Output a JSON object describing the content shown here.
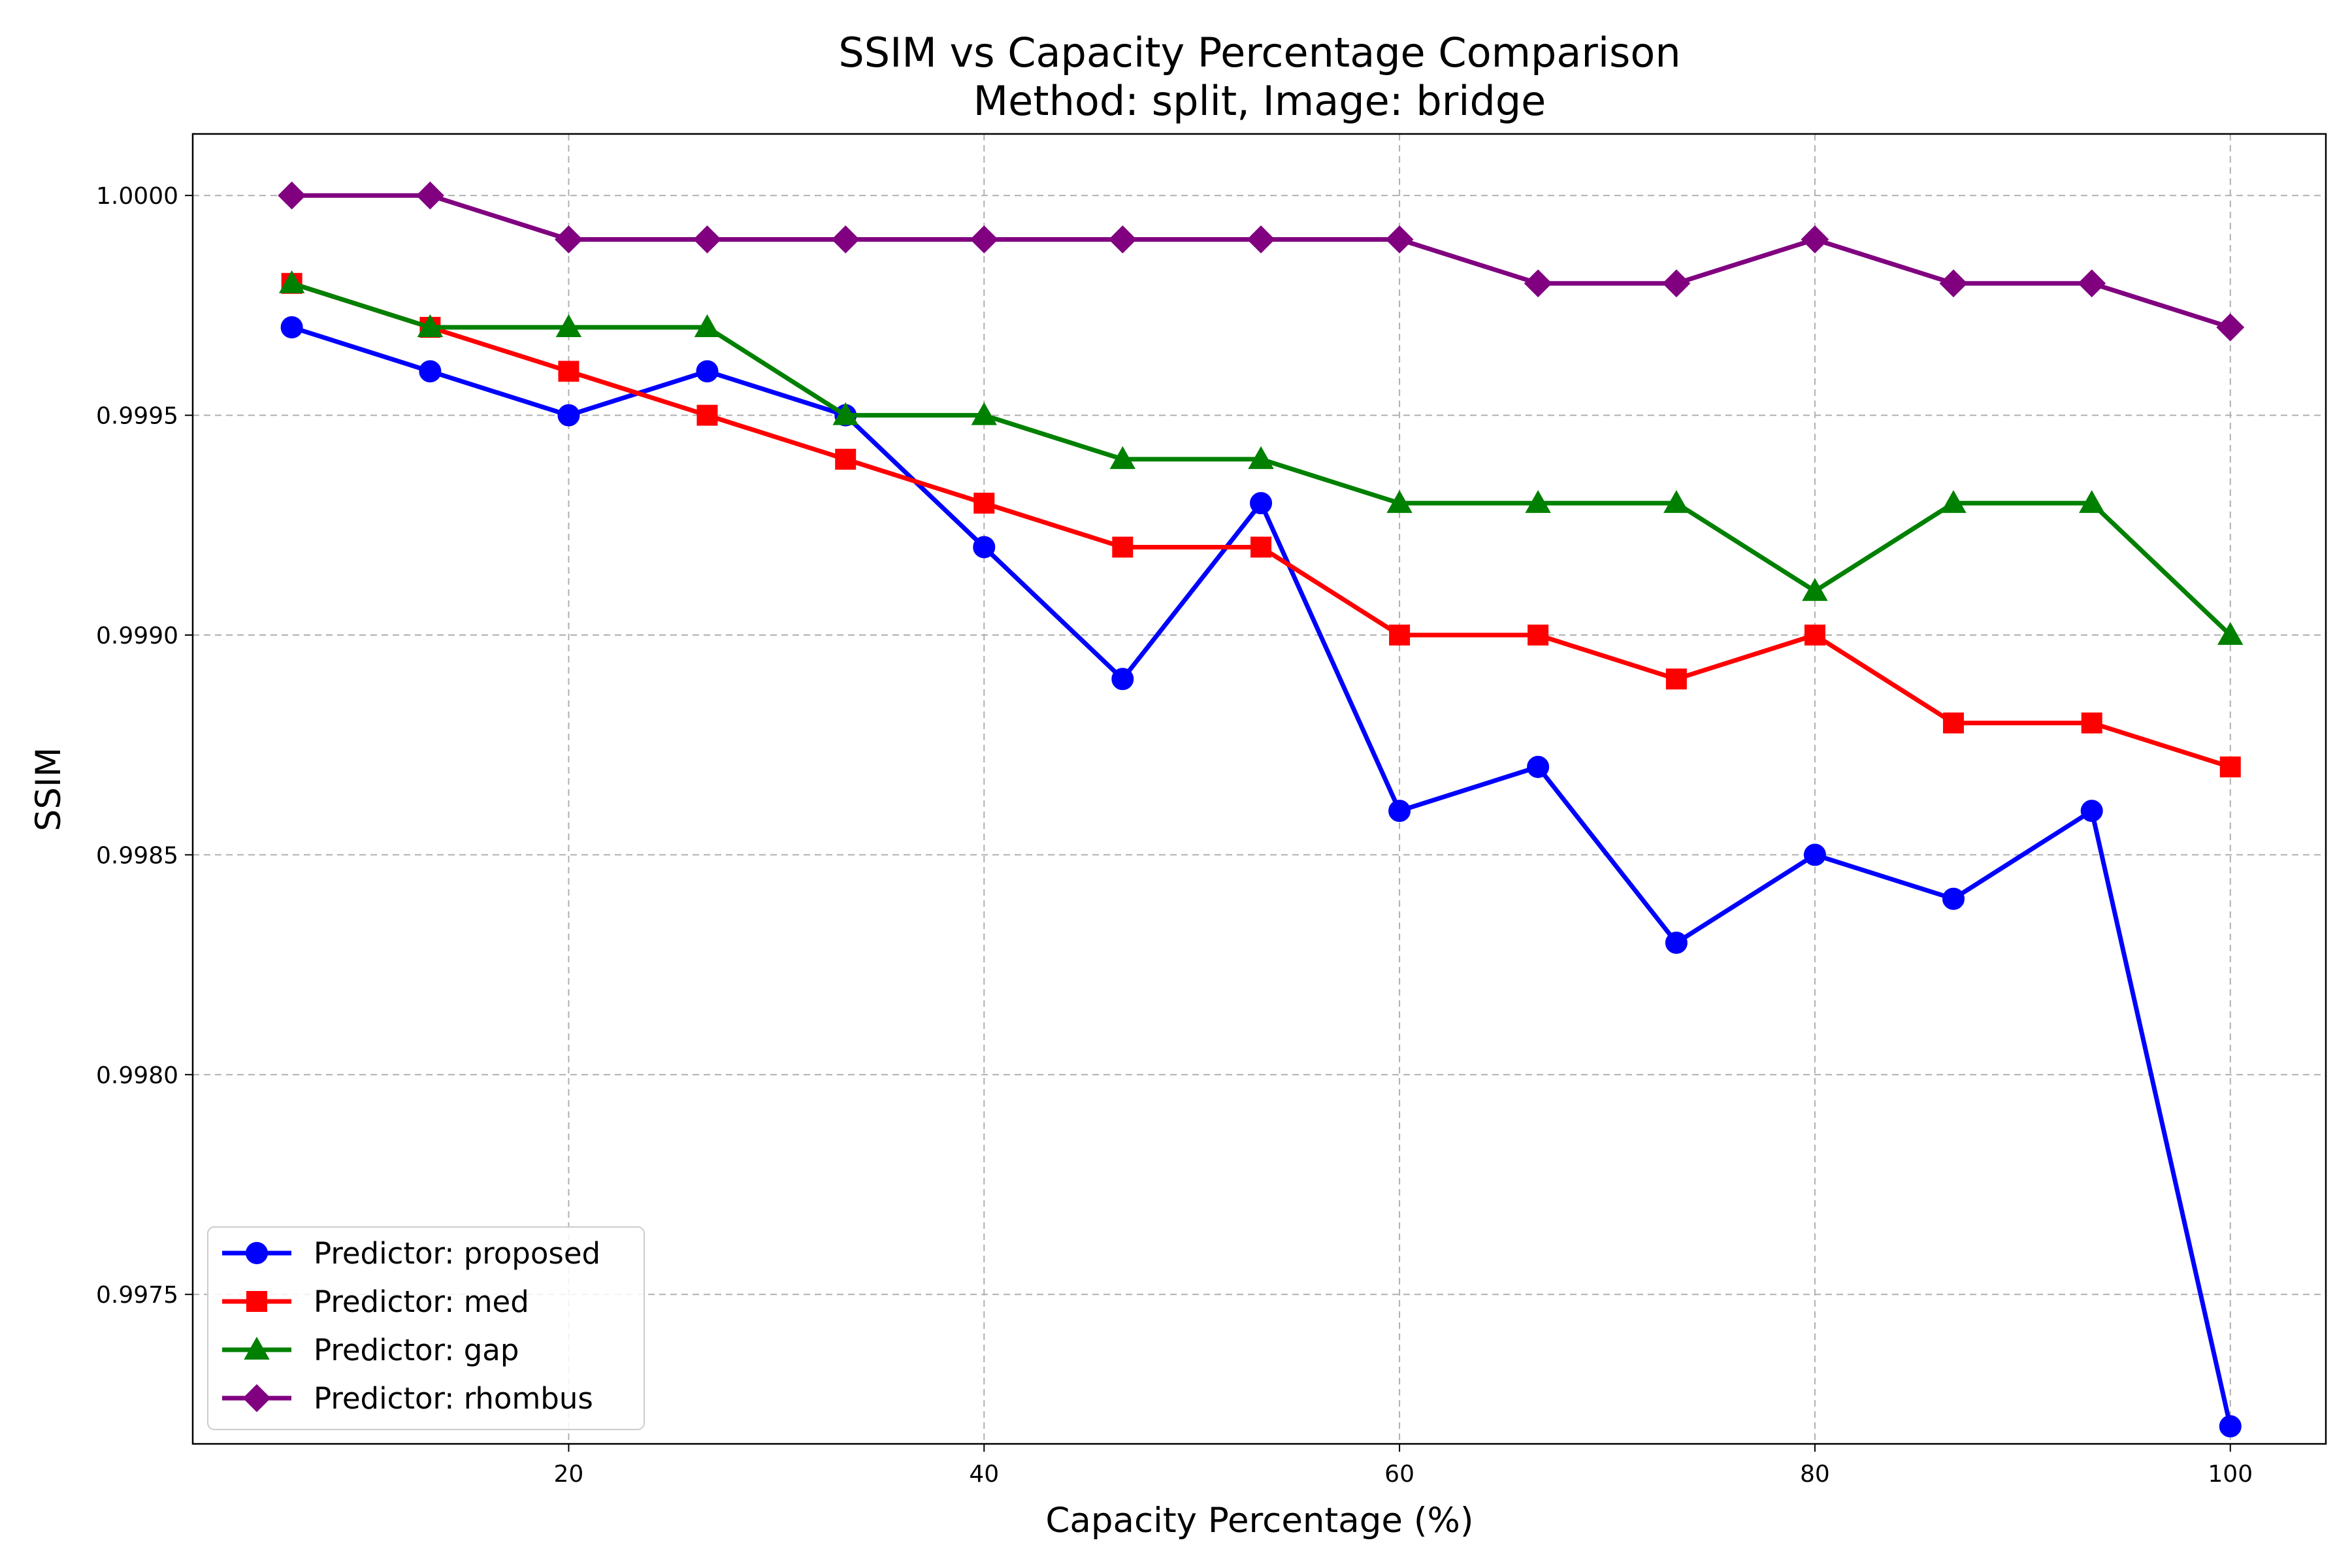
{
  "chart_data": {
    "type": "line",
    "title": "SSIM vs Capacity Percentage Comparison",
    "subtitle": "Method: split, Image: bridge",
    "xlabel": "Capacity Percentage (%)",
    "ylabel": "SSIM",
    "x": [
      6.67,
      13.33,
      20,
      26.67,
      33.33,
      40,
      46.67,
      53.33,
      60,
      66.67,
      73.33,
      80,
      86.67,
      93.33,
      100
    ],
    "xlim": [
      1.9,
      104.6
    ],
    "ylim": [
      0.99716,
      1.00014
    ],
    "xticks": [
      20,
      40,
      60,
      80,
      100
    ],
    "xtick_labels": [
      "20",
      "40",
      "60",
      "80",
      "100"
    ],
    "yticks": [
      0.9975,
      0.998,
      0.9985,
      0.999,
      0.9995,
      1.0
    ],
    "ytick_labels": [
      "0.9975",
      "0.9980",
      "0.9985",
      "0.9990",
      "0.9995",
      "1.0000"
    ],
    "grid": true,
    "legend_position": "lower-left",
    "series": [
      {
        "name": "Predictor: proposed",
        "color": "#0000ff",
        "marker": "circle",
        "values": [
          0.9997,
          0.9996,
          0.9995,
          0.9996,
          0.9995,
          0.9992,
          0.9989,
          0.9993,
          0.9986,
          0.9987,
          0.9983,
          0.9985,
          0.9984,
          0.9986,
          0.9972
        ]
      },
      {
        "name": "Predictor: med",
        "color": "#ff0000",
        "marker": "square",
        "values": [
          0.9998,
          0.9997,
          0.9996,
          0.9995,
          0.9994,
          0.9993,
          0.9992,
          0.9992,
          0.999,
          0.999,
          0.9989,
          0.999,
          0.9988,
          0.9988,
          0.9987
        ]
      },
      {
        "name": "Predictor: gap",
        "color": "#008000",
        "marker": "triangle",
        "values": [
          0.9998,
          0.9997,
          0.9997,
          0.9997,
          0.9995,
          0.9995,
          0.9994,
          0.9994,
          0.9993,
          0.9993,
          0.9993,
          0.9991,
          0.9993,
          0.9993,
          0.999
        ]
      },
      {
        "name": "Predictor: rhombus",
        "color": "#800080",
        "marker": "diamond",
        "values": [
          1.0,
          1.0,
          0.9999,
          0.9999,
          0.9999,
          0.9999,
          0.9999,
          0.9999,
          0.9999,
          0.9998,
          0.9998,
          0.9999,
          0.9998,
          0.9998,
          0.9997
        ]
      }
    ]
  }
}
